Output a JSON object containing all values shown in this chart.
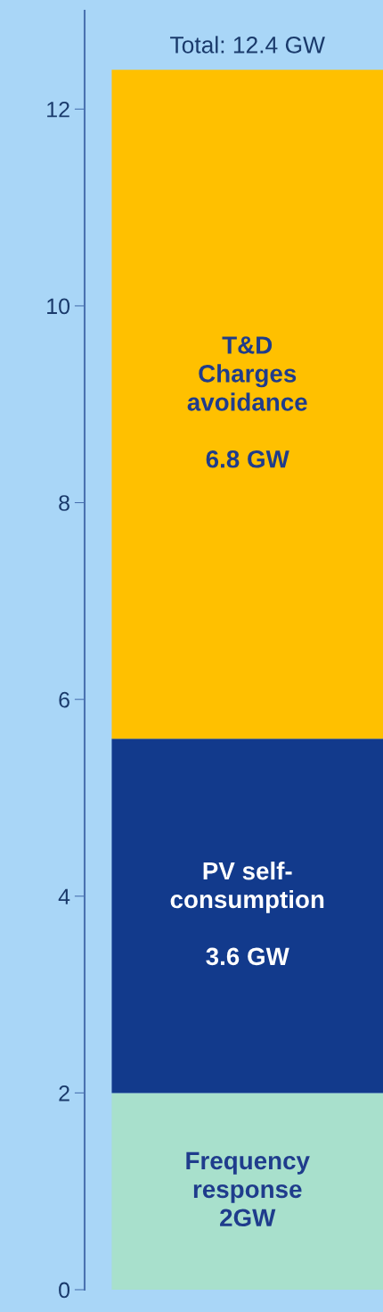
{
  "chart_data": {
    "type": "bar",
    "stacked": true,
    "categories": [
      null
    ],
    "series": [
      {
        "name": "Frequency\nresponse",
        "color": "#a8e0cc",
        "values": [
          2
        ],
        "value_labels": [
          "2GW"
        ]
      },
      {
        "name": "PV self-\nconsumption",
        "color": "#123a8c",
        "values": [
          3.6
        ],
        "value_labels": [
          "3.6 GW"
        ]
      },
      {
        "name": "T&D\nCharges\navoidance",
        "color": "#ffc000",
        "values": [
          6.8
        ],
        "value_labels": [
          "6.8 GW"
        ]
      }
    ],
    "totals": [
      "Total: 12.4 GW"
    ],
    "ylim": [
      0,
      13
    ],
    "yticks": [
      0,
      2,
      4,
      6,
      8,
      10,
      12
    ],
    "tick_labels": "y",
    "grid": false,
    "legend": false
  }
}
